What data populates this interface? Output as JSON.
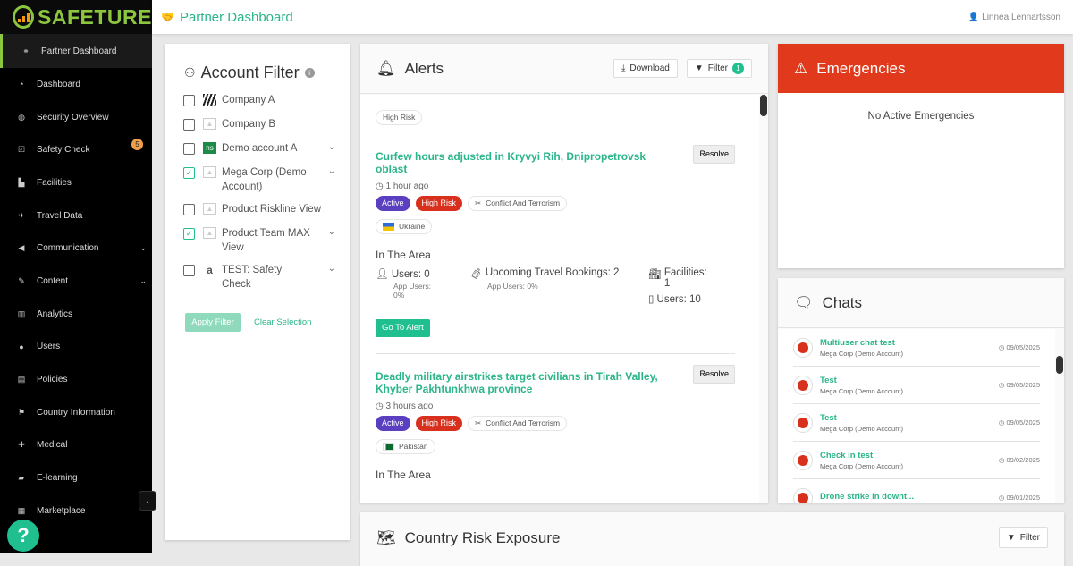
{
  "brand": "SAFETURE",
  "colors": {
    "accent": "#2bb58a",
    "brand_green": "#8cc63f",
    "emergency": "#e0391c",
    "active": "#5a3fc0",
    "high_risk": "#d8301c"
  },
  "header": {
    "title": "Partner Dashboard",
    "user": "Linnea Lennartsson"
  },
  "sidebar": {
    "items": [
      {
        "label": "Partner Dashboard",
        "icon": "handshake-icon"
      },
      {
        "label": "Dashboard",
        "icon": "gauge-icon"
      },
      {
        "label": "Security Overview",
        "icon": "globe-icon"
      },
      {
        "label": "Safety Check",
        "icon": "checkbox-icon",
        "badge": "5"
      },
      {
        "label": "Facilities",
        "icon": "factory-icon"
      },
      {
        "label": "Travel Data",
        "icon": "plane-icon"
      },
      {
        "label": "Communication",
        "icon": "megaphone-icon"
      },
      {
        "label": "Content",
        "icon": "pencil-icon"
      },
      {
        "label": "Analytics",
        "icon": "chart-icon"
      },
      {
        "label": "Users",
        "icon": "user-icon"
      },
      {
        "label": "Policies",
        "icon": "document-icon"
      },
      {
        "label": "Country Information",
        "icon": "flag-icon"
      },
      {
        "label": "Medical",
        "icon": "medkit-icon"
      },
      {
        "label": "E-learning",
        "icon": "graduation-icon"
      },
      {
        "label": "Marketplace",
        "icon": "store-icon"
      }
    ]
  },
  "account_filter": {
    "title": "Account Filter",
    "items": [
      {
        "label": "Company A",
        "checked": false
      },
      {
        "label": "Company B",
        "checked": false
      },
      {
        "label": "Demo account A",
        "checked": false,
        "logo": "ns"
      },
      {
        "label": "Mega Corp (Demo Account)",
        "checked": true
      },
      {
        "label": "Product Riskline View",
        "checked": false
      },
      {
        "label": "Product Team MAX View",
        "checked": true
      },
      {
        "label": "TEST: Safety Check",
        "checked": false,
        "logo": "a"
      }
    ],
    "apply": "Apply Filter",
    "clear": "Clear Selection"
  },
  "alerts": {
    "title": "Alerts",
    "download": "Download",
    "filter": "Filter",
    "filter_count": "1",
    "group_chip": "High Risk",
    "items": [
      {
        "title": "Curfew hours adjusted in Kryvyi Rih, Dnipropetrovsk oblast",
        "time": "1 hour ago",
        "status": "Active",
        "risk": "High Risk",
        "category": "Conflict And Terrorism",
        "country": "Ukraine",
        "resolve": "Resolve",
        "area_title": "In The Area",
        "users": "Users: 0",
        "app_users": "App Users: 0%",
        "travel": "Upcoming Travel Bookings: 2",
        "travel_app": "App Users: 0%",
        "facilities": "Facilities: 1",
        "fac_users": "Users: 10",
        "goto": "Go To Alert"
      },
      {
        "title": "Deadly military airstrikes target civilians in Tirah Valley, Khyber Pakhtunkhwa province",
        "time": "3 hours ago",
        "status": "Active",
        "risk": "High Risk",
        "category": "Conflict And Terrorism",
        "country": "Pakistan",
        "resolve": "Resolve",
        "area_title": "In The Area"
      }
    ]
  },
  "emergencies": {
    "title": "Emergencies",
    "empty": "No Active Emergencies"
  },
  "chats": {
    "title": "Chats",
    "items": [
      {
        "name": "Multiuser chat test",
        "account": "Mega Corp (Demo Account)",
        "date": "09/05/2025"
      },
      {
        "name": "Test",
        "account": "Mega Corp (Demo Account)",
        "date": "09/05/2025"
      },
      {
        "name": "Test",
        "account": "Mega Corp (Demo Account)",
        "date": "09/05/2025"
      },
      {
        "name": "Check in test",
        "account": "Mega Corp (Demo Account)",
        "date": "09/02/2025"
      },
      {
        "name": "Drone strike in downt...",
        "account": "",
        "date": "09/01/2025"
      }
    ]
  },
  "country_risk": {
    "title": "Country Risk Exposure",
    "filter": "Filter"
  }
}
